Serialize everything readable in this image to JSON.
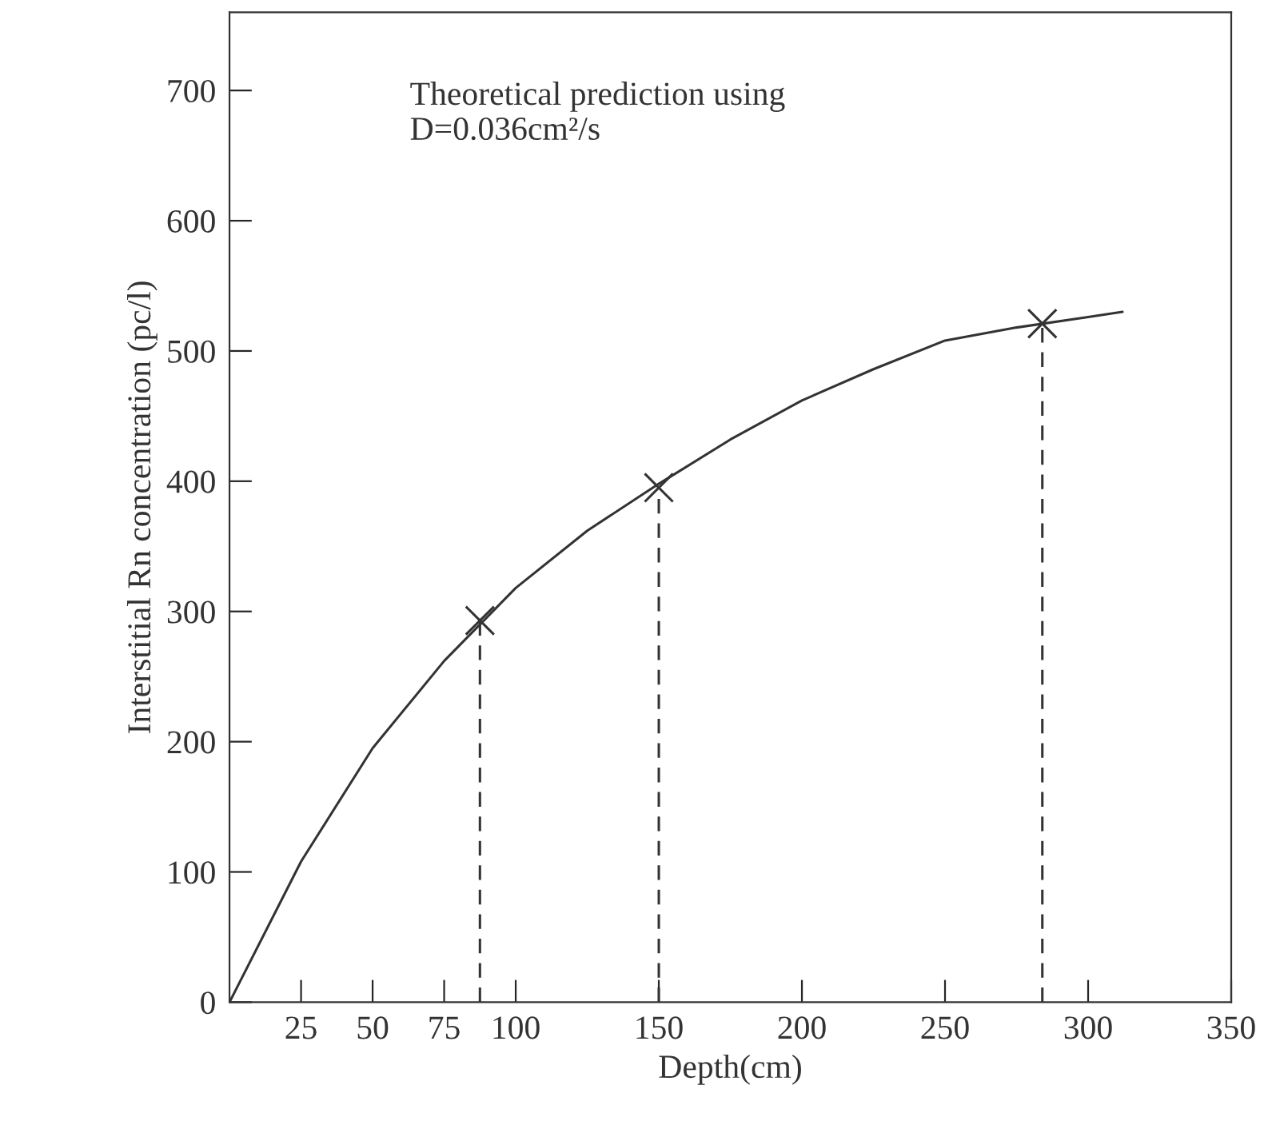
{
  "chart_data": {
    "type": "line",
    "xlabel": "Depth(cm)",
    "ylabel": "Interstitial Rn concentration (pc/l)",
    "annotations": [
      "Theoretical prediction using\nD=0.036cm²/s"
    ],
    "xlim": [
      0,
      350
    ],
    "xticks": [
      25,
      50,
      75,
      100,
      150,
      200,
      250,
      300,
      350
    ],
    "ylim": [
      0,
      760
    ],
    "yticks": [
      0,
      100,
      200,
      300,
      400,
      500,
      600,
      700
    ],
    "grid": false,
    "legend": false,
    "series": [
      {
        "color": "#333333",
        "line_style": "solid",
        "x": [
          0,
          25,
          50,
          75,
          100,
          125,
          150,
          175,
          200,
          225,
          250,
          275,
          300,
          312
        ],
        "values": [
          0,
          108,
          195,
          262,
          318,
          362,
          398,
          432,
          462,
          486,
          508,
          518,
          526,
          530
        ]
      },
      {
        "type": "scatter",
        "color": "#333333",
        "marker": "cross",
        "x": [
          87.5,
          150,
          284
        ],
        "values": [
          293,
          395,
          521
        ]
      }
    ],
    "ref_lines": [
      {
        "axis": "x",
        "value": 87.5,
        "line_style": "dashed",
        "color": "#333333"
      },
      {
        "axis": "x",
        "value": 150,
        "line_style": "dashed",
        "color": "#333333"
      },
      {
        "axis": "x",
        "value": 284,
        "line_style": "dashed",
        "color": "#333333"
      }
    ]
  }
}
